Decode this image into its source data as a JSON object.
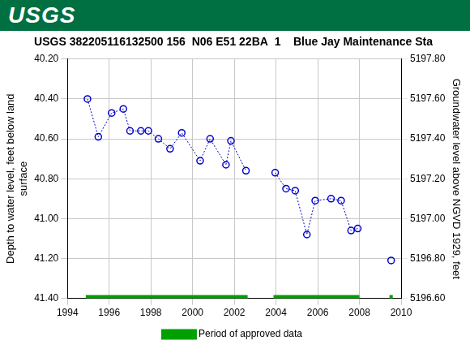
{
  "header": {
    "logo": "USGS"
  },
  "chart_data": {
    "type": "scatter",
    "title": "USGS 382205116132500 156  N06 E51 22BA  1    Blue Jay Maintenance Sta",
    "y_label": [
      "Depth to water level, feet below land",
      "surface"
    ],
    "y2_label": "Groundwater level above NGVD 1929, feet",
    "x": [
      1994.96,
      1995.48,
      1996.12,
      1996.68,
      1997.0,
      1997.52,
      1997.88,
      1998.36,
      1998.92,
      1999.48,
      2000.36,
      2000.84,
      2001.6,
      2001.84,
      2002.56,
      null,
      2003.96,
      2004.48,
      2004.92,
      2005.48,
      2005.88,
      2006.64,
      2007.12,
      2007.6,
      2007.92,
      null,
      2009.52
    ],
    "series": [
      {
        "color": "#0000cc",
        "marker": "circle",
        "line_style": "dotted",
        "values": [
          40.4,
          40.59,
          40.47,
          40.45,
          40.56,
          40.56,
          40.56,
          40.6,
          40.65,
          40.57,
          40.71,
          40.6,
          40.73,
          40.61,
          40.76,
          null,
          40.77,
          40.85,
          40.86,
          41.08,
          40.91,
          40.9,
          40.91,
          41.06,
          41.05,
          null,
          41.21
        ]
      }
    ],
    "approved_periods": {
      "name": "Period of approved data",
      "color": "#00a000",
      "ranges": [
        [
          1994.88,
          2002.64
        ],
        [
          2003.88,
          2008.0
        ],
        [
          2009.44,
          2009.6
        ]
      ]
    },
    "xlim": [
      1994,
      2010
    ],
    "xticks": [
      1994,
      1996,
      1998,
      2000,
      2002,
      2004,
      2006,
      2008,
      2010
    ],
    "ylim": [
      41.4,
      40.2
    ],
    "yticks": [
      {
        "value": 40.2,
        "label": "40.20"
      },
      {
        "value": 40.4,
        "label": "40.40"
      },
      {
        "value": 40.6,
        "label": "40.60"
      },
      {
        "value": 40.8,
        "label": "40.80"
      },
      {
        "value": 41.0,
        "label": "41.00"
      },
      {
        "value": 41.2,
        "label": "41.20"
      },
      {
        "value": 41.4,
        "label": "41.40"
      }
    ],
    "y2lim": [
      5196.6,
      5197.8
    ],
    "y2ticks": [
      {
        "value": 5196.6,
        "label": "5196.60"
      },
      {
        "value": 5196.8,
        "label": "5196.80"
      },
      {
        "value": 5197.0,
        "label": "5197.00"
      },
      {
        "value": 5197.2,
        "label": "5197.20"
      },
      {
        "value": 5197.4,
        "label": "5197.40"
      },
      {
        "value": 5197.6,
        "label": "5197.60"
      },
      {
        "value": 5197.8,
        "label": "5197.80"
      }
    ],
    "grid": true,
    "legend": "bottom"
  }
}
